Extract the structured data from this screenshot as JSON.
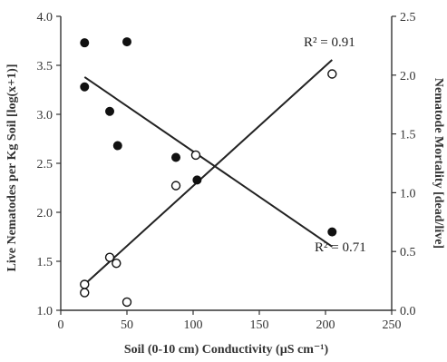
{
  "chart_data": {
    "type": "scatter",
    "xlabel": "Soil (0-10 cm) Conductivity (µS cm⁻¹)",
    "ylabel_left": "Live Nematodes per Kg Soil [log(x+1)]",
    "ylabel_right": "Nematode Mortality [dead/live]",
    "xlim": [
      0,
      250
    ],
    "ylim_left": [
      1.0,
      4.0
    ],
    "ylim_right": [
      0.0,
      2.5
    ],
    "x_ticks": [
      "0",
      "50",
      "100",
      "150",
      "200",
      "250"
    ],
    "y_left_ticks": [
      "1.0",
      "1.5",
      "2.0",
      "2.5",
      "3.0",
      "3.5",
      "4.0"
    ],
    "y_right_ticks": [
      "0.0",
      "0.5",
      "1.0",
      "1.5",
      "2.0",
      "2.5"
    ],
    "grid": false,
    "legend": "none",
    "series": [
      {
        "marker": "filled-circle",
        "axis": "left",
        "x": [
          18,
          18,
          50,
          37,
          43,
          87,
          103,
          205
        ],
        "y": [
          3.73,
          3.28,
          3.74,
          3.03,
          2.68,
          2.56,
          2.33,
          1.8
        ],
        "trendline": {
          "x": [
            18,
            205
          ],
          "y": [
            3.38,
            1.65
          ]
        },
        "annotation": "R² = 0.71"
      },
      {
        "marker": "open-circle",
        "axis": "right",
        "x": [
          18,
          18,
          37,
          42,
          50,
          87,
          102,
          205
        ],
        "y": [
          0.22,
          0.15,
          0.45,
          0.4,
          0.07,
          1.06,
          1.32,
          2.01
        ],
        "trendline": {
          "x": [
            18,
            205
          ],
          "y": [
            0.22,
            2.13
          ]
        },
        "annotation": "R² = 0.91"
      }
    ]
  }
}
